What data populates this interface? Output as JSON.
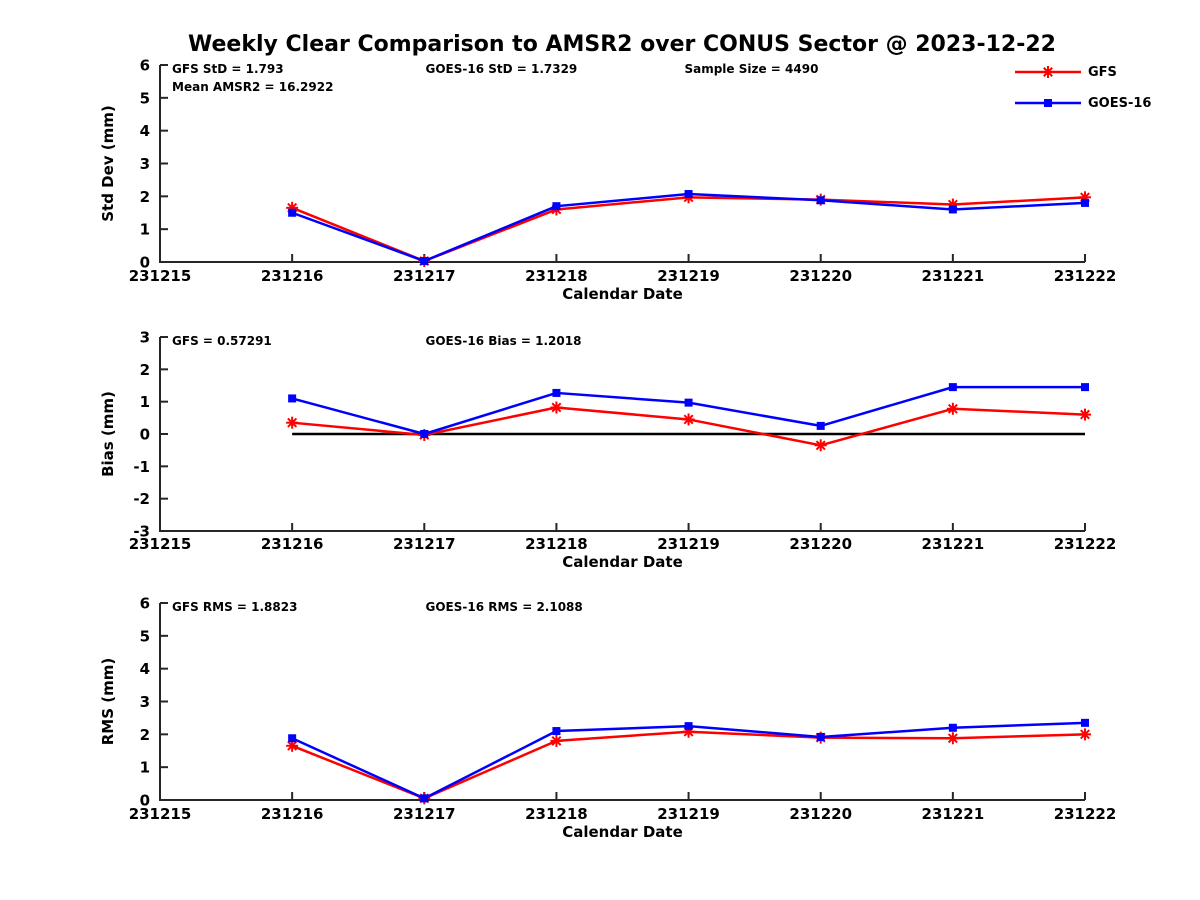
{
  "title": "Weekly Clear Comparison to AMSR2 over CONUS Sector @ 2023-12-22",
  "colors": {
    "gfs": "#ff0000",
    "goes16": "#0000ff",
    "axis": "#262626",
    "text": "#000000",
    "zero_line": "#000000"
  },
  "legend": [
    {
      "label": "GFS",
      "color": "#ff0000",
      "marker": "asterisk"
    },
    {
      "label": "GOES-16",
      "color": "#0000ff",
      "marker": "square"
    }
  ],
  "chart_data": [
    {
      "type": "line",
      "name": "std-dev",
      "ylabel": "Std Dev (mm)",
      "xlabel": "Calendar Date",
      "ylim": [
        0,
        6
      ],
      "yticks": [
        0,
        1,
        2,
        3,
        4,
        5,
        6
      ],
      "categories": [
        "231215",
        "231216",
        "231217",
        "231218",
        "231219",
        "231220",
        "231221",
        "231222"
      ],
      "annotations": [
        {
          "text": "GFS StD = 1.793",
          "xf": 0.013,
          "row": 0
        },
        {
          "text": "Mean AMSR2 = 16.2922",
          "xf": 0.013,
          "row": 1
        },
        {
          "text": "GOES-16 StD = 1.7329",
          "xf": 0.287,
          "row": 0
        },
        {
          "text": "Sample Size = 4490",
          "xf": 0.567,
          "row": 0
        }
      ],
      "series": [
        {
          "name": "GFS",
          "color": "#ff0000",
          "marker": "asterisk",
          "start_index": 1,
          "values": [
            1.65,
            0.03,
            1.6,
            1.97,
            1.9,
            1.75,
            1.97
          ]
        },
        {
          "name": "GOES-16",
          "color": "#0000ff",
          "marker": "square",
          "start_index": 1,
          "values": [
            1.5,
            0.03,
            1.7,
            2.07,
            1.88,
            1.6,
            1.8
          ]
        }
      ],
      "zero_line": null,
      "grid": false,
      "legend_position": "top-right-outside"
    },
    {
      "type": "line",
      "name": "bias",
      "ylabel": "Bias (mm)",
      "xlabel": "Calendar Date",
      "ylim": [
        -3,
        3
      ],
      "yticks": [
        -3,
        -2,
        -1,
        0,
        1,
        2,
        3
      ],
      "categories": [
        "231215",
        "231216",
        "231217",
        "231218",
        "231219",
        "231220",
        "231221",
        "231222"
      ],
      "annotations": [
        {
          "text": "GFS = 0.57291",
          "xf": 0.013,
          "row": 0
        },
        {
          "text": "GOES-16 Bias  = 1.2018",
          "xf": 0.287,
          "row": 0
        }
      ],
      "series": [
        {
          "name": "GFS",
          "color": "#ff0000",
          "marker": "asterisk",
          "start_index": 1,
          "values": [
            0.35,
            -0.03,
            0.82,
            0.45,
            -0.35,
            0.78,
            0.6
          ]
        },
        {
          "name": "GOES-16",
          "color": "#0000ff",
          "marker": "square",
          "start_index": 1,
          "values": [
            1.1,
            0.0,
            1.27,
            0.97,
            0.25,
            1.45,
            1.45
          ]
        }
      ],
      "zero_line": {
        "start_index": 1,
        "end_index": 7
      },
      "grid": false
    },
    {
      "type": "line",
      "name": "rms",
      "ylabel": "RMS (mm)",
      "xlabel": "Calendar Date",
      "ylim": [
        0,
        6
      ],
      "yticks": [
        0,
        1,
        2,
        3,
        4,
        5,
        6
      ],
      "categories": [
        "231215",
        "231216",
        "231217",
        "231218",
        "231219",
        "231220",
        "231221",
        "231222"
      ],
      "annotations": [
        {
          "text": "GFS RMS = 1.8823",
          "xf": 0.013,
          "row": 0
        },
        {
          "text": "GOES-16 RMS = 2.1088",
          "xf": 0.287,
          "row": 0
        }
      ],
      "series": [
        {
          "name": "GFS",
          "color": "#ff0000",
          "marker": "asterisk",
          "start_index": 1,
          "values": [
            1.65,
            0.05,
            1.8,
            2.08,
            1.9,
            1.88,
            2.0
          ]
        },
        {
          "name": "GOES-16",
          "color": "#0000ff",
          "marker": "square",
          "start_index": 1,
          "values": [
            1.88,
            0.05,
            2.1,
            2.25,
            1.92,
            2.2,
            2.35
          ]
        }
      ],
      "zero_line": null,
      "grid": false
    }
  ]
}
